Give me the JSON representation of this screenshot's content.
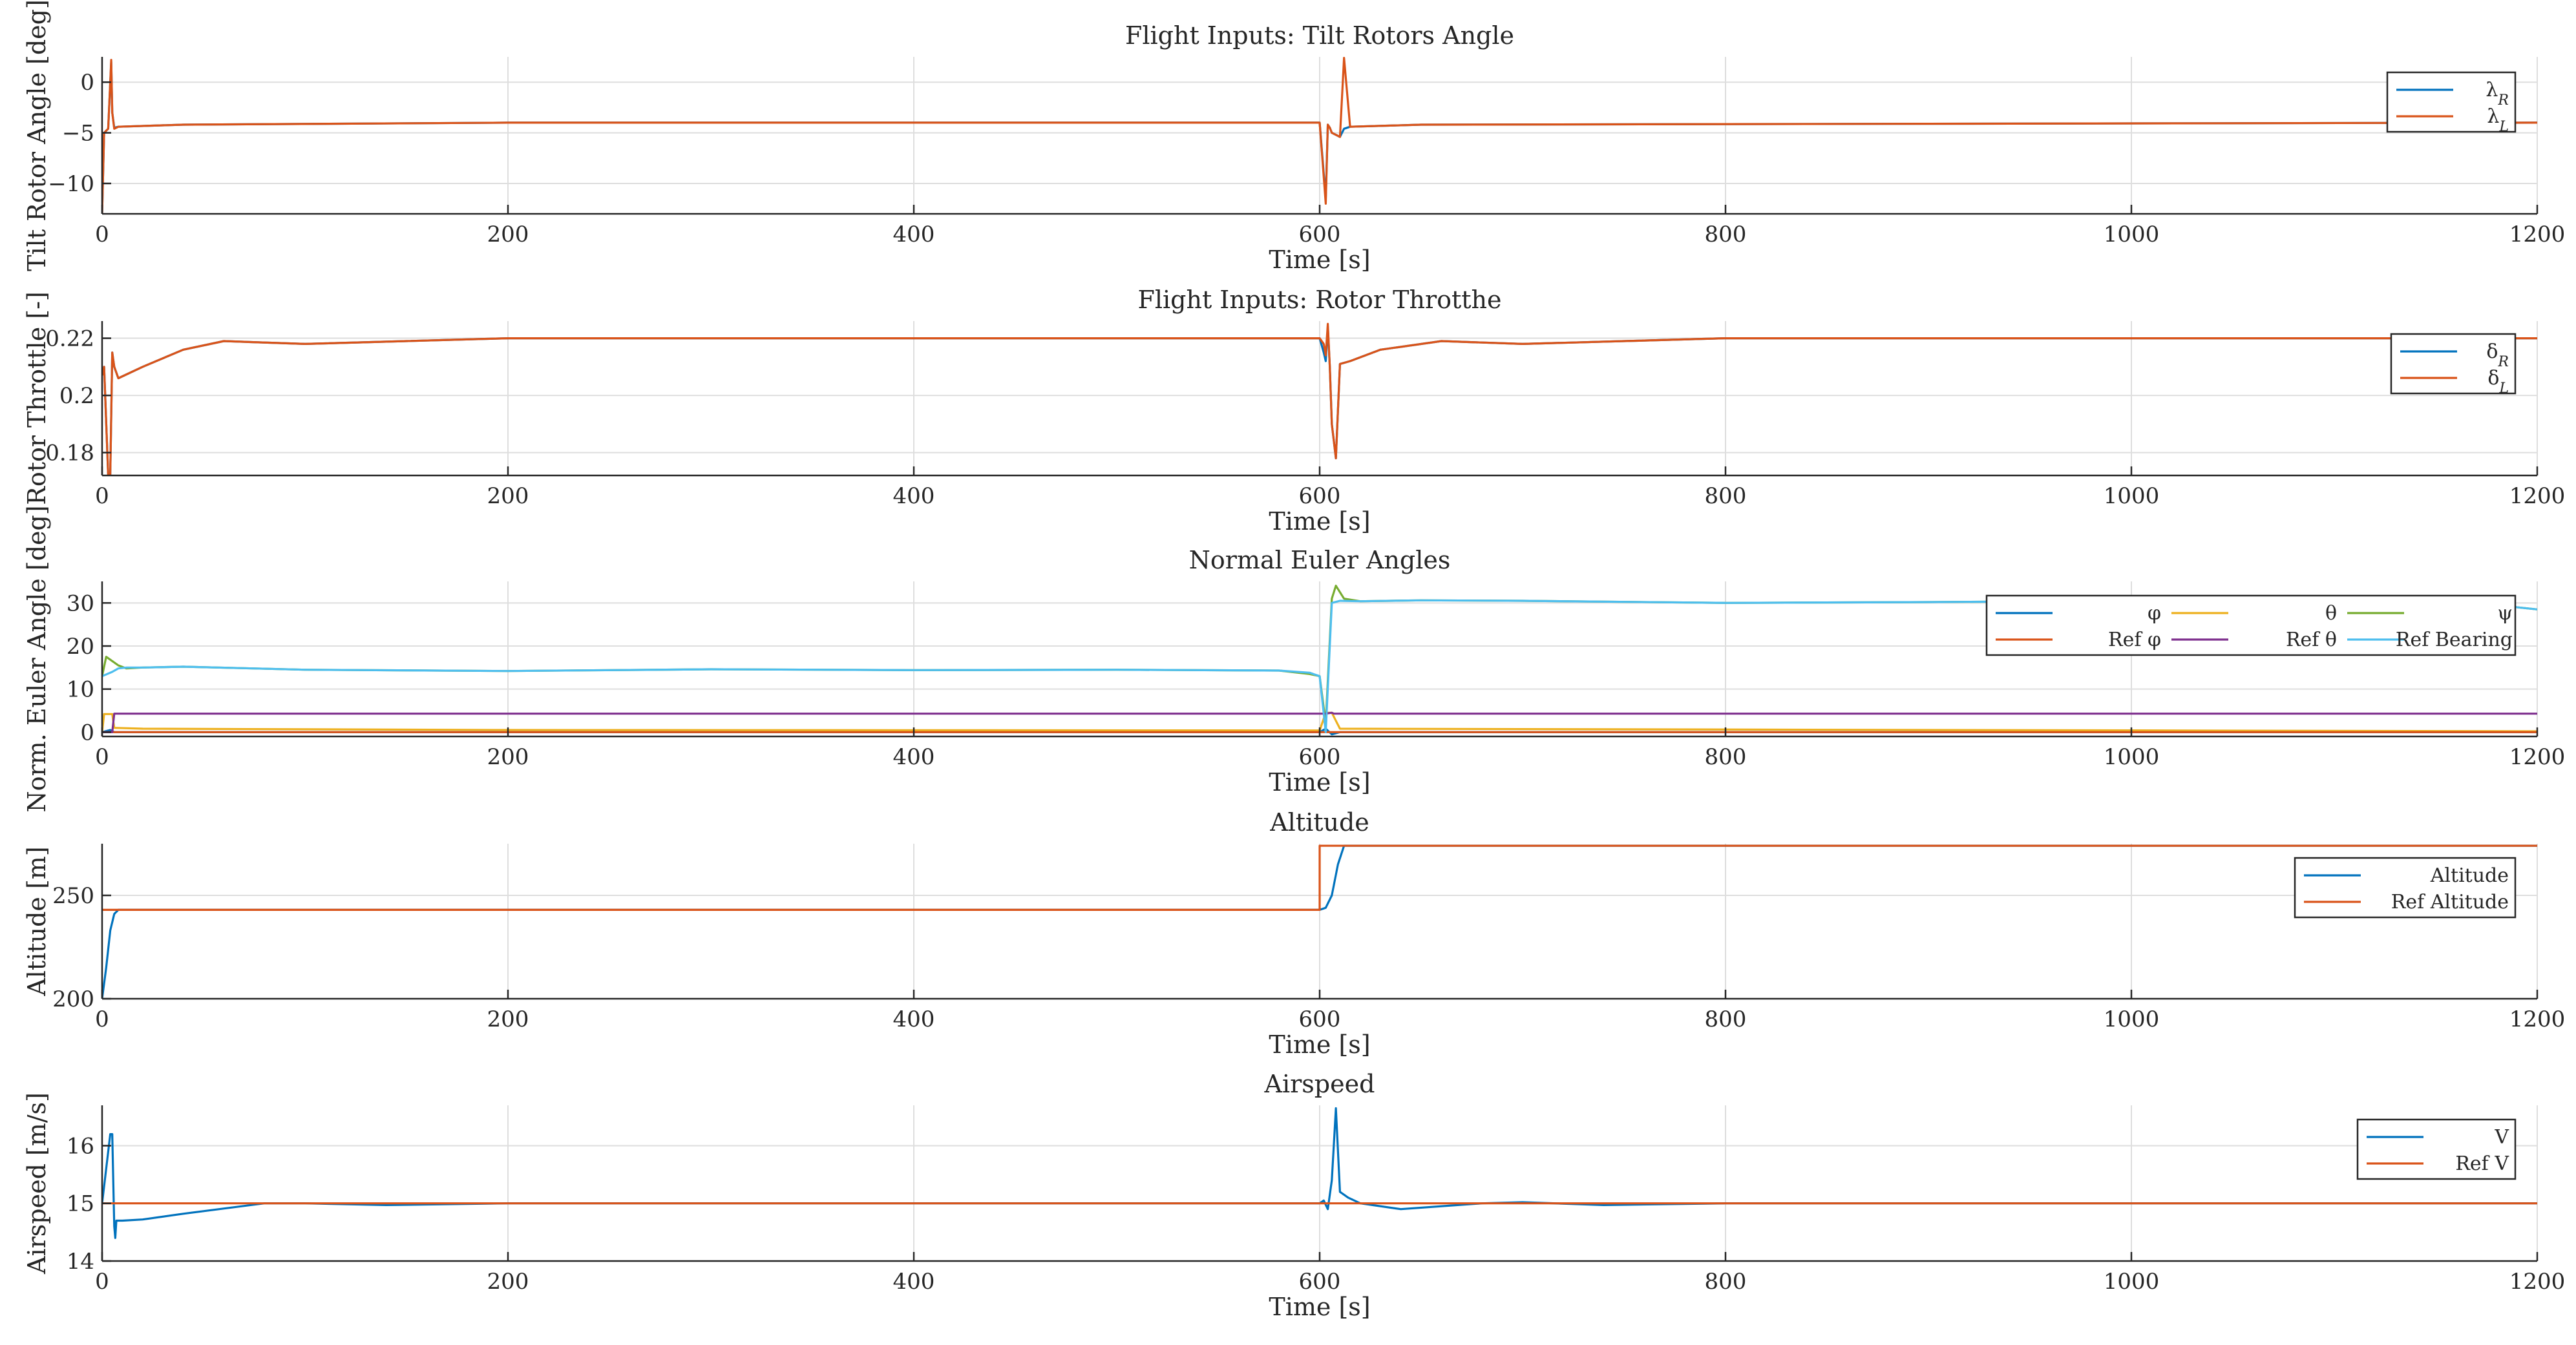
{
  "colors": {
    "blue": "#0072BD",
    "orange": "#D95319",
    "yellow": "#EDB120",
    "purple": "#7E2F8E",
    "green": "#77AC30",
    "cyan": "#4DBEEE"
  },
  "chart_data": [
    {
      "type": "line",
      "title": "Flight Inputs: Tilt Rotors Angle",
      "xlabel": "Time [s]",
      "ylabel": "Tilt Rotor Angle [deg]",
      "xlim": [
        0,
        1200
      ],
      "ylim": [
        -13,
        2.5
      ],
      "xticks": [
        0,
        200,
        400,
        600,
        800,
        1000,
        1200
      ],
      "yticks": [
        -10,
        -5,
        0
      ],
      "grid": true,
      "legend_position": "top-right",
      "series": [
        {
          "name": "λR",
          "color": "blue",
          "x": [
            0,
            1,
            3,
            4.5,
            5,
            6,
            8,
            40,
            200,
            600,
            603,
            604,
            605,
            606,
            608,
            610,
            612,
            615,
            650,
            1200
          ],
          "y": [
            -13,
            -5,
            -4.6,
            2,
            -3,
            -4.5,
            -4.4,
            -4.2,
            -4.0,
            -4.0,
            -11.5,
            -4.2,
            -4.5,
            -5,
            -5.2,
            -5.4,
            -4.6,
            -4.4,
            -4.2,
            -4.0
          ]
        },
        {
          "name": "λL",
          "color": "orange",
          "x": [
            0,
            1,
            3,
            4.5,
            5,
            6,
            8,
            40,
            200,
            600,
            603,
            604,
            605,
            606,
            608,
            610,
            612,
            615,
            650,
            1200
          ],
          "y": [
            -13,
            -5,
            -4.6,
            2.2,
            -3,
            -4.6,
            -4.4,
            -4.2,
            -4.0,
            -4.0,
            -12,
            -4.2,
            -4.5,
            -5,
            -5.2,
            -5.4,
            2.4,
            -4.4,
            -4.2,
            -4.0
          ]
        }
      ]
    },
    {
      "type": "line",
      "title": "Flight Inputs: Rotor Throtthe",
      "xlabel": "Time [s]",
      "ylabel": "Rotor Throttle [-]",
      "xlim": [
        0,
        1200
      ],
      "ylim": [
        0.172,
        0.226
      ],
      "xticks": [
        0,
        200,
        400,
        600,
        800,
        1000,
        1200
      ],
      "yticks": [
        0.18,
        0.2,
        0.22
      ],
      "grid": true,
      "legend_position": "top-right",
      "series": [
        {
          "name": "δR",
          "color": "blue",
          "x": [
            0,
            1,
            3,
            4,
            5,
            6,
            8,
            20,
            40,
            60,
            100,
            150,
            200,
            600,
            602,
            603,
            604,
            605,
            606,
            608,
            610,
            615,
            630,
            660,
            700,
            750,
            800,
            1200
          ],
          "y": [
            0.207,
            0.21,
            0.172,
            0.172,
            0.215,
            0.21,
            0.206,
            0.21,
            0.216,
            0.219,
            0.218,
            0.219,
            0.22,
            0.22,
            0.215,
            0.212,
            0.224,
            0.21,
            0.19,
            0.178,
            0.211,
            0.212,
            0.216,
            0.219,
            0.218,
            0.219,
            0.22,
            0.22
          ]
        },
        {
          "name": "δL",
          "color": "orange",
          "x": [
            0,
            1,
            3,
            4,
            5,
            6,
            8,
            20,
            40,
            60,
            100,
            150,
            200,
            600,
            602,
            603,
            604,
            605,
            606,
            608,
            610,
            615,
            630,
            660,
            700,
            750,
            800,
            1200
          ],
          "y": [
            0.207,
            0.21,
            0.172,
            0.172,
            0.215,
            0.21,
            0.206,
            0.21,
            0.216,
            0.219,
            0.218,
            0.219,
            0.22,
            0.22,
            0.218,
            0.214,
            0.225,
            0.21,
            0.19,
            0.178,
            0.211,
            0.212,
            0.216,
            0.219,
            0.218,
            0.219,
            0.22,
            0.22
          ]
        }
      ]
    },
    {
      "type": "line",
      "title": "Normal Euler Angles",
      "xlabel": "Time [s]",
      "ylabel": "Norm. Euler Angle [deg]",
      "xlim": [
        0,
        1200
      ],
      "ylim": [
        -1,
        35
      ],
      "xticks": [
        0,
        200,
        400,
        600,
        800,
        1000,
        1200
      ],
      "yticks": [
        0,
        10,
        20,
        30
      ],
      "grid": true,
      "legend_position": "top-right",
      "series": [
        {
          "name": "φ",
          "color": "blue",
          "x": [
            0,
            4,
            6,
            10,
            600,
            603,
            606,
            610,
            1200
          ],
          "y": [
            0,
            0.5,
            0,
            0,
            0,
            0.8,
            -0.5,
            0,
            0
          ]
        },
        {
          "name": "θ",
          "color": "yellow",
          "x": [
            0,
            1,
            5,
            6,
            20,
            200,
            600,
            603,
            606,
            610,
            1200
          ],
          "y": [
            0,
            4.2,
            4.2,
            1,
            0.8,
            0.5,
            0.4,
            4.5,
            4.5,
            0.8,
            0.2
          ]
        },
        {
          "name": "ψ",
          "color": "green",
          "x": [
            0,
            2,
            5,
            8,
            12,
            20,
            40,
            100,
            200,
            300,
            400,
            500,
            580,
            595,
            600,
            603,
            606,
            608,
            612,
            620,
            650,
            700,
            800,
            900,
            1000,
            1100,
            1180,
            1200
          ],
          "y": [
            13,
            17.5,
            16.5,
            15.5,
            14.8,
            15,
            15.2,
            14.5,
            14.2,
            14.6,
            14.4,
            14.5,
            14.3,
            13.5,
            13,
            2,
            31,
            34,
            31,
            30.4,
            30.6,
            30.5,
            30,
            30.2,
            30.5,
            30.4,
            29.5,
            28.5
          ]
        },
        {
          "name": "Ref φ",
          "color": "orange",
          "x": [
            0,
            1200
          ],
          "y": [
            0,
            0
          ]
        },
        {
          "name": "Ref θ",
          "color": "purple",
          "x": [
            0,
            5,
            6,
            600,
            603,
            606,
            607,
            1200
          ],
          "y": [
            0,
            0,
            4.3,
            4.3,
            4.3,
            4.5,
            4.3,
            4.3
          ]
        },
        {
          "name": "Ref Bearing",
          "color": "cyan",
          "x": [
            0,
            5,
            8,
            12,
            20,
            40,
            100,
            200,
            300,
            400,
            500,
            580,
            595,
            600,
            603,
            606,
            610,
            620,
            650,
            700,
            800,
            900,
            1000,
            1100,
            1180,
            1200
          ],
          "y": [
            13,
            14,
            14.8,
            15,
            15,
            15.2,
            14.5,
            14.2,
            14.6,
            14.4,
            14.5,
            14.3,
            13.8,
            13,
            0,
            30,
            30.5,
            30.4,
            30.6,
            30.5,
            30,
            30.2,
            30.5,
            30.4,
            29.5,
            28.5
          ]
        }
      ]
    },
    {
      "type": "line",
      "title": "Altitude",
      "xlabel": "Time [s]",
      "ylabel": "Altitude [m]",
      "xlim": [
        0,
        1200
      ],
      "ylim": [
        200,
        275
      ],
      "xticks": [
        0,
        200,
        400,
        600,
        800,
        1000,
        1200
      ],
      "yticks": [
        200,
        250
      ],
      "grid": true,
      "legend_position": "top-right",
      "series": [
        {
          "name": "Altitude",
          "color": "blue",
          "x": [
            0,
            2,
            4,
            6,
            8,
            600,
            603,
            606,
            609,
            612,
            1200
          ],
          "y": [
            200,
            215,
            233,
            241,
            243,
            243,
            244,
            250,
            265,
            274,
            274
          ]
        },
        {
          "name": "Ref Altitude",
          "color": "orange",
          "x": [
            0,
            600,
            600,
            1200
          ],
          "y": [
            243,
            243,
            274,
            274
          ]
        }
      ]
    },
    {
      "type": "line",
      "title": "Airspeed",
      "xlabel": "Time [s]",
      "ylabel": "Airspeed [m/s]",
      "xlim": [
        0,
        1200
      ],
      "ylim": [
        14,
        16.7
      ],
      "xticks": [
        0,
        200,
        400,
        600,
        800,
        1000,
        1200
      ],
      "yticks": [
        14,
        15,
        16
      ],
      "grid": true,
      "legend_position": "top-right",
      "series": [
        {
          "name": "V",
          "color": "blue",
          "x": [
            0,
            2,
            4,
            5,
            6,
            6.5,
            7,
            10,
            20,
            40,
            80,
            100,
            140,
            200,
            600,
            602,
            604,
            606,
            608,
            610,
            614,
            620,
            640,
            680,
            700,
            740,
            800,
            1200
          ],
          "y": [
            15,
            15.6,
            16.2,
            16.2,
            14.6,
            14.4,
            14.7,
            14.7,
            14.72,
            14.82,
            15,
            15.0,
            14.97,
            15,
            15,
            15.05,
            14.9,
            15.4,
            16.65,
            15.2,
            15.1,
            15.0,
            14.9,
            15.0,
            15.02,
            14.97,
            15,
            15
          ]
        },
        {
          "name": "Ref V",
          "color": "orange",
          "x": [
            0,
            1200
          ],
          "y": [
            15,
            15
          ]
        }
      ]
    }
  ]
}
